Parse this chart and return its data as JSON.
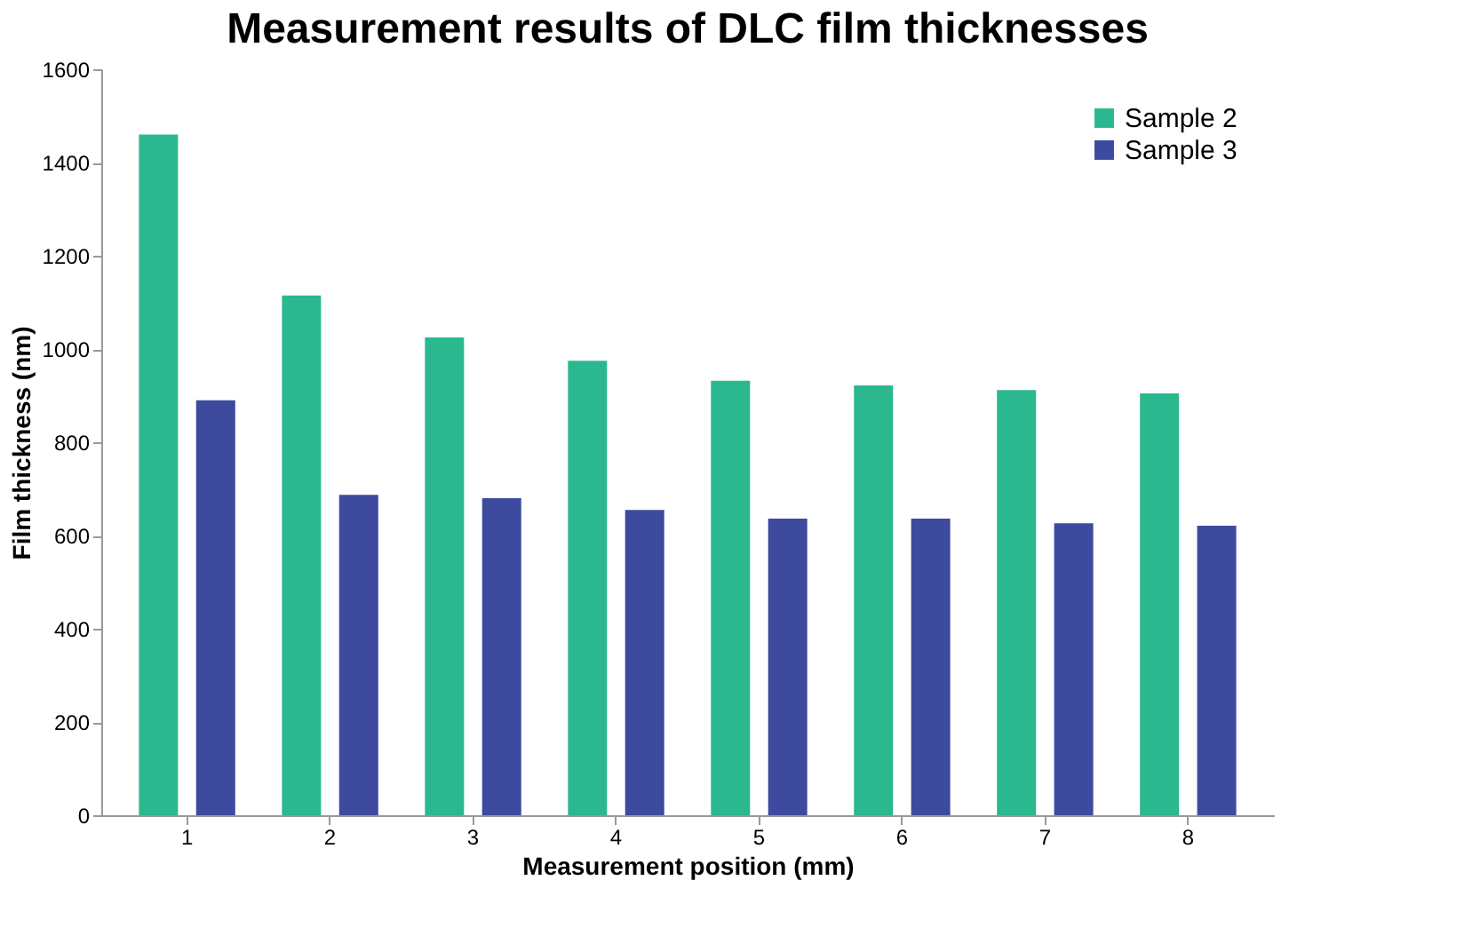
{
  "chart_data": {
    "type": "bar",
    "title": "Measurement results of DLC film thicknesses",
    "xlabel": "Measurement position (mm)",
    "ylabel": "Film thickness (nm)",
    "categories": [
      "1",
      "2",
      "3",
      "4",
      "5",
      "6",
      "7",
      "8"
    ],
    "series": [
      {
        "name": "Sample 2",
        "color": "#2bb88f",
        "values": [
          1460,
          1115,
          1025,
          975,
          932,
          922,
          912,
          905
        ]
      },
      {
        "name": "Sample 3",
        "color": "#3d4a9e",
        "values": [
          890,
          687,
          680,
          655,
          636,
          636,
          626,
          621
        ]
      }
    ],
    "ylim": [
      0,
      1600
    ],
    "yticks": [
      0,
      200,
      400,
      600,
      800,
      1000,
      1200,
      1400,
      1600
    ],
    "grid": false,
    "legend": "top right"
  }
}
